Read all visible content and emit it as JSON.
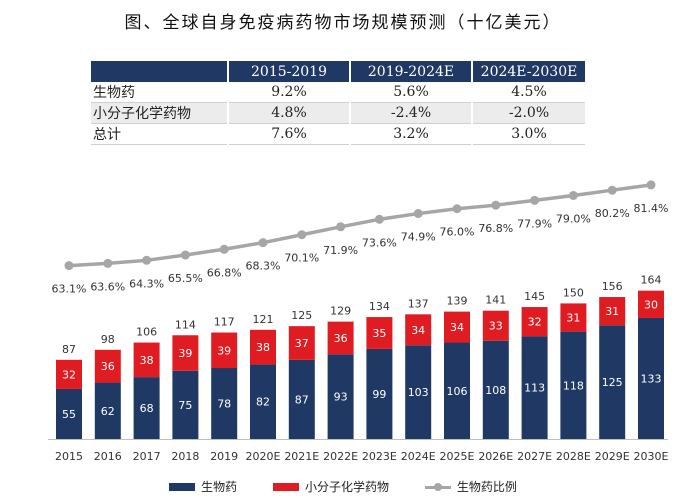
{
  "title": "图、全球自身免疫病药物市场规模预测（十亿美元）",
  "cagr_table": {
    "headers": [
      "",
      "2015-2019",
      "2019-2024E",
      "2024E-2030E"
    ],
    "rows": [
      {
        "label": "生物药",
        "values": [
          "9.2%",
          "5.6%",
          "4.5%"
        ]
      },
      {
        "label": "小分子化学药物",
        "values": [
          "4.8%",
          "-2.4%",
          "-2.0%"
        ]
      },
      {
        "label": "总计",
        "values": [
          "7.6%",
          "3.2%",
          "3.0%"
        ]
      }
    ]
  },
  "colors": {
    "bio": "#1f3864",
    "small": "#e01c23",
    "ratio": "#a6a6a6",
    "header": "#1f3864"
  },
  "chart_data": {
    "type": "bar",
    "stacked": true,
    "categories": [
      "2015",
      "2016",
      "2017",
      "2018",
      "2019",
      "2020E",
      "2021E",
      "2022E",
      "2023E",
      "2024E",
      "2025E",
      "2026E",
      "2027E",
      "2028E",
      "2029E",
      "2030E"
    ],
    "series": [
      {
        "name": "生物药",
        "values": [
          55,
          62,
          68,
          75,
          78,
          82,
          87,
          93,
          99,
          103,
          106,
          108,
          113,
          118,
          125,
          133
        ]
      },
      {
        "name": "小分子化学药物",
        "values": [
          32,
          36,
          38,
          39,
          39,
          38,
          37,
          36,
          35,
          34,
          34,
          33,
          32,
          31,
          31,
          30
        ]
      }
    ],
    "totals": [
      87,
      98,
      106,
      114,
      117,
      121,
      125,
      129,
      134,
      137,
      139,
      141,
      145,
      150,
      156,
      164
    ],
    "line_series": {
      "name": "生物药比例",
      "values": [
        63.1,
        63.6,
        64.3,
        65.5,
        66.8,
        68.3,
        70.1,
        71.9,
        73.6,
        74.9,
        76.0,
        76.8,
        77.9,
        79.0,
        80.2,
        81.4
      ],
      "labels": [
        "63.1%",
        "63.6%",
        "64.3%",
        "65.5%",
        "66.8%",
        "68.3%",
        "70.1%",
        "71.9%",
        "73.6%",
        "74.9%",
        "76.0%",
        "76.8%",
        "77.9%",
        "79.0%",
        "80.2%",
        "81.4%"
      ]
    },
    "legend": [
      "生物药",
      "小分子化学药物",
      "生物药比例"
    ],
    "legend_position": "bottom"
  }
}
